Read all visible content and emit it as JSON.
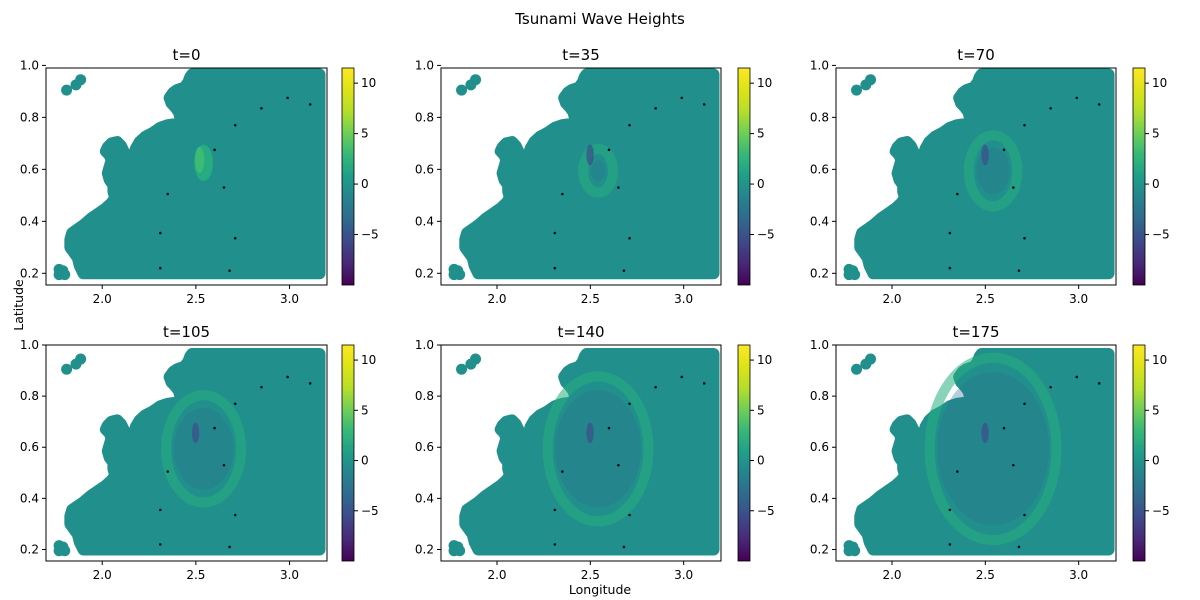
{
  "figure": {
    "suptitle": "Tsunami Wave Heights",
    "xlabel": "Longitude",
    "ylabel": "Latitude"
  },
  "chart_data": {
    "type": "scatter",
    "x_ticks": [
      "2.0",
      "2.5",
      "3.0"
    ],
    "y_ticks_row1": [
      "0.2",
      "0.4",
      "0.6",
      "0.8",
      "1.0"
    ],
    "y_ticks_row2": [
      "0.2",
      "0.4",
      "0.6",
      "0.8",
      "1.0"
    ],
    "xlim": [
      1.7,
      3.2
    ],
    "ylim_row1": [
      0.155,
      0.99
    ],
    "ylim_row2": [
      0.155,
      1.0
    ],
    "colorbar": {
      "colormap": "viridis",
      "range": [
        -10,
        11.5
      ],
      "ticks": [
        "10",
        "5",
        "0",
        "−5"
      ]
    },
    "base_color": "#21908c",
    "colors": {
      "stations": "#111111",
      "positive_wave": "#28ae80",
      "strong_positive": "#3dbc74",
      "negative_wave": "#2c728e",
      "strong_negative": "#3b528b"
    },
    "stations": [
      {
        "x": 2.35,
        "y": 0.505
      },
      {
        "x": 2.31,
        "y": 0.355
      },
      {
        "x": 2.31,
        "y": 0.22
      },
      {
        "x": 2.68,
        "y": 0.21
      },
      {
        "x": 2.71,
        "y": 0.335
      },
      {
        "x": 2.65,
        "y": 0.53
      },
      {
        "x": 2.71,
        "y": 0.77
      },
      {
        "x": 2.85,
        "y": 0.835
      },
      {
        "x": 2.99,
        "y": 0.875
      },
      {
        "x": 3.11,
        "y": 0.85
      },
      {
        "x": 2.6,
        "y": 0.675
      }
    ],
    "panels": [
      {
        "title": "t=0",
        "ring_radius": 0.0,
        "center_height": 4.5
      },
      {
        "title": "t=35",
        "ring_radius": 0.08,
        "center_height": -3.0
      },
      {
        "title": "t=70",
        "ring_radius": 0.13,
        "center_height": -3.0
      },
      {
        "title": "t=105",
        "ring_radius": 0.2,
        "center_height": -2.5
      },
      {
        "title": "t=140",
        "ring_radius": 0.27,
        "center_height": -2.0
      },
      {
        "title": "t=175",
        "ring_radius": 0.34,
        "center_height": -2.0
      }
    ],
    "source": {
      "x": 2.52,
      "y": 0.625
    }
  }
}
